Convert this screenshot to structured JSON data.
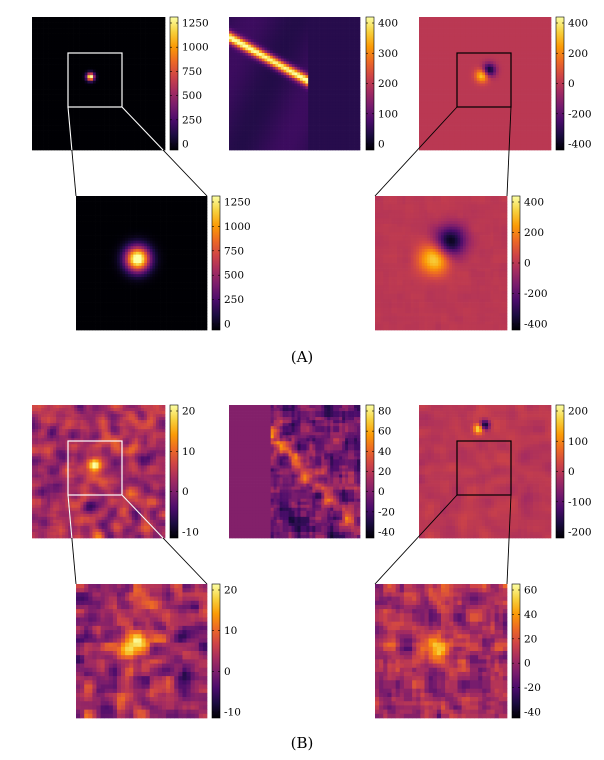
{
  "figure": {
    "panels": [
      {
        "caption": "(A)",
        "maps": [
          {
            "id": "a-source",
            "colorbar_ticks": [
              "1250",
              "1000",
              "750",
              "500",
              "250",
              "0"
            ]
          },
          {
            "id": "a-streak",
            "colorbar_ticks": [
              "400",
              "300",
              "200",
              "100",
              "0"
            ]
          },
          {
            "id": "a-difference",
            "colorbar_ticks": [
              "400",
              "200",
              "0",
              "-200",
              "-400"
            ]
          },
          {
            "id": "a-source-zoom",
            "colorbar_ticks": [
              "1250",
              "1000",
              "750",
              "500",
              "250",
              "0"
            ]
          },
          {
            "id": "a-difference-zoom",
            "colorbar_ticks": [
              "400",
              "200",
              "0",
              "-200",
              "-400"
            ]
          }
        ]
      },
      {
        "caption": "(B)",
        "maps": [
          {
            "id": "b-source",
            "colorbar_ticks": [
              "20",
              "10",
              "0",
              "-10"
            ]
          },
          {
            "id": "b-streak",
            "colorbar_ticks": [
              "80",
              "60",
              "40",
              "20",
              "0",
              "-20",
              "-40"
            ]
          },
          {
            "id": "b-difference",
            "colorbar_ticks": [
              "200",
              "100",
              "0",
              "-100",
              "-200"
            ]
          },
          {
            "id": "b-source-zoom",
            "colorbar_ticks": [
              "20",
              "10",
              "0",
              "-10"
            ]
          },
          {
            "id": "b-difference-zoom",
            "colorbar_ticks": [
              "60",
              "40",
              "20",
              "0",
              "-20",
              "-40"
            ]
          }
        ]
      }
    ],
    "colors": {
      "colormap": "inferno",
      "inferno_stops": [
        "#000004",
        "#1b0c41",
        "#4a0c6b",
        "#781c6d",
        "#a52c60",
        "#cf4446",
        "#ed6925",
        "#fb9b06",
        "#f7d13d",
        "#fcffa4"
      ],
      "zoom_box_panel_a_left": "#ffffff",
      "zoom_box_panel_a_right": "#000000",
      "zoom_box_panel_b_left": "#ffffff",
      "zoom_box_panel_b_right": "#000000"
    }
  }
}
